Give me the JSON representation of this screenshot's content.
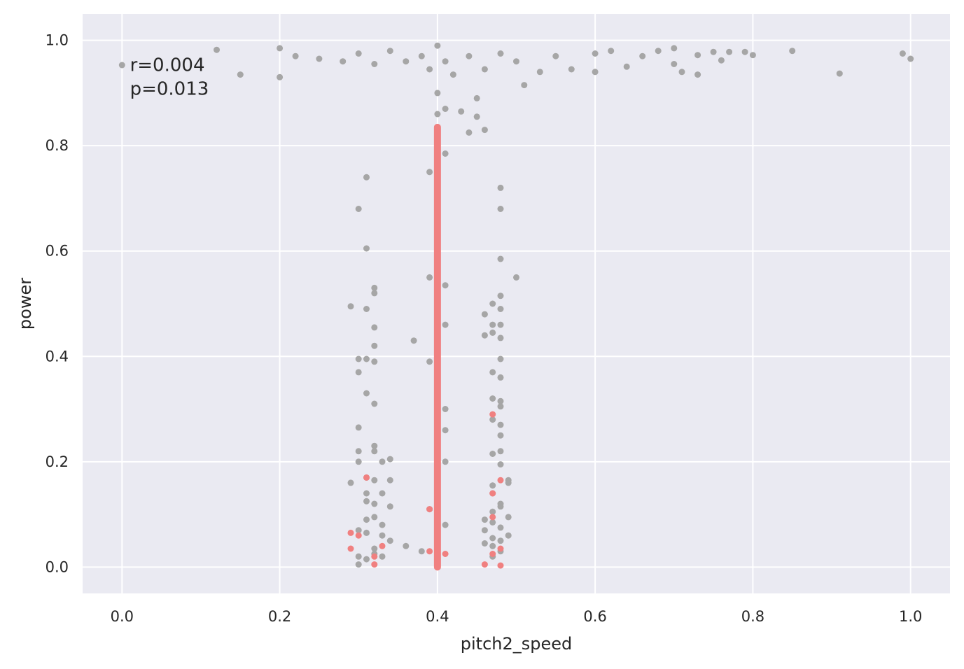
{
  "chart_data": {
    "type": "scatter",
    "title": "",
    "xlabel": "pitch2_speed",
    "ylabel": "power",
    "xlim": [
      -0.05,
      1.05
    ],
    "ylim": [
      -0.05,
      1.05
    ],
    "xticks": [
      0.0,
      0.2,
      0.4,
      0.6,
      0.8,
      1.0
    ],
    "xtick_labels": [
      "0.0",
      "0.2",
      "0.4",
      "0.6",
      "0.8",
      "1.0"
    ],
    "yticks": [
      0.0,
      0.2,
      0.4,
      0.6,
      0.8,
      1.0
    ],
    "ytick_labels": [
      "0.0",
      "0.2",
      "0.4",
      "0.6",
      "0.8",
      "1.0"
    ],
    "grid": true,
    "annotations": [
      "r=0.004",
      "p=0.013"
    ],
    "colors": {
      "background": "#eaeaf2",
      "grid": "#ffffff",
      "main_points": "#a6a6a6",
      "highlight_points": "#f08080",
      "text": "#262626"
    },
    "series": [
      {
        "color": "#a6a6a6",
        "points": [
          [
            0.0,
            0.953
          ],
          [
            0.12,
            0.982
          ],
          [
            0.15,
            0.935
          ],
          [
            0.2,
            0.985
          ],
          [
            0.2,
            0.93
          ],
          [
            0.22,
            0.97
          ],
          [
            0.25,
            0.965
          ],
          [
            0.28,
            0.96
          ],
          [
            0.3,
            0.975
          ],
          [
            0.32,
            0.955
          ],
          [
            0.34,
            0.98
          ],
          [
            0.36,
            0.96
          ],
          [
            0.38,
            0.97
          ],
          [
            0.39,
            0.945
          ],
          [
            0.4,
            0.99
          ],
          [
            0.41,
            0.96
          ],
          [
            0.42,
            0.935
          ],
          [
            0.44,
            0.97
          ],
          [
            0.46,
            0.945
          ],
          [
            0.48,
            0.975
          ],
          [
            0.5,
            0.96
          ],
          [
            0.51,
            0.915
          ],
          [
            0.53,
            0.94
          ],
          [
            0.55,
            0.97
          ],
          [
            0.57,
            0.945
          ],
          [
            0.6,
            0.975
          ],
          [
            0.6,
            0.94
          ],
          [
            0.62,
            0.98
          ],
          [
            0.64,
            0.95
          ],
          [
            0.66,
            0.97
          ],
          [
            0.68,
            0.98
          ],
          [
            0.7,
            0.985
          ],
          [
            0.7,
            0.955
          ],
          [
            0.71,
            0.94
          ],
          [
            0.73,
            0.935
          ],
          [
            0.73,
            0.972
          ],
          [
            0.75,
            0.978
          ],
          [
            0.76,
            0.962
          ],
          [
            0.77,
            0.978
          ],
          [
            0.79,
            0.978
          ],
          [
            0.8,
            0.972
          ],
          [
            0.85,
            0.98
          ],
          [
            0.91,
            0.937
          ],
          [
            0.99,
            0.975
          ],
          [
            1.0,
            0.965
          ],
          [
            0.4,
            0.9
          ],
          [
            0.4,
            0.86
          ],
          [
            0.41,
            0.87
          ],
          [
            0.43,
            0.865
          ],
          [
            0.45,
            0.89
          ],
          [
            0.45,
            0.855
          ],
          [
            0.44,
            0.825
          ],
          [
            0.46,
            0.83
          ],
          [
            0.41,
            0.785
          ],
          [
            0.39,
            0.75
          ],
          [
            0.4,
            0.77
          ],
          [
            0.4,
            0.67
          ],
          [
            0.4,
            0.63
          ],
          [
            0.39,
            0.55
          ],
          [
            0.41,
            0.535
          ],
          [
            0.41,
            0.46
          ],
          [
            0.37,
            0.43
          ],
          [
            0.39,
            0.39
          ],
          [
            0.41,
            0.3
          ],
          [
            0.41,
            0.26
          ],
          [
            0.41,
            0.2
          ],
          [
            0.36,
            0.04
          ],
          [
            0.38,
            0.03
          ],
          [
            0.41,
            0.08
          ],
          [
            0.39,
            0.11
          ],
          [
            0.31,
            0.74
          ],
          [
            0.3,
            0.68
          ],
          [
            0.31,
            0.605
          ],
          [
            0.32,
            0.53
          ],
          [
            0.32,
            0.52
          ],
          [
            0.29,
            0.495
          ],
          [
            0.31,
            0.49
          ],
          [
            0.32,
            0.455
          ],
          [
            0.32,
            0.42
          ],
          [
            0.3,
            0.395
          ],
          [
            0.31,
            0.395
          ],
          [
            0.32,
            0.39
          ],
          [
            0.3,
            0.37
          ],
          [
            0.31,
            0.33
          ],
          [
            0.32,
            0.31
          ],
          [
            0.3,
            0.265
          ],
          [
            0.32,
            0.23
          ],
          [
            0.3,
            0.22
          ],
          [
            0.32,
            0.22
          ],
          [
            0.33,
            0.2
          ],
          [
            0.34,
            0.205
          ],
          [
            0.3,
            0.2
          ],
          [
            0.31,
            0.17
          ],
          [
            0.32,
            0.165
          ],
          [
            0.34,
            0.165
          ],
          [
            0.29,
            0.16
          ],
          [
            0.31,
            0.14
          ],
          [
            0.33,
            0.14
          ],
          [
            0.31,
            0.125
          ],
          [
            0.32,
            0.12
          ],
          [
            0.34,
            0.115
          ],
          [
            0.31,
            0.09
          ],
          [
            0.32,
            0.095
          ],
          [
            0.33,
            0.08
          ],
          [
            0.3,
            0.07
          ],
          [
            0.31,
            0.065
          ],
          [
            0.33,
            0.06
          ],
          [
            0.34,
            0.05
          ],
          [
            0.32,
            0.035
          ],
          [
            0.3,
            0.02
          ],
          [
            0.32,
            0.025
          ],
          [
            0.33,
            0.02
          ],
          [
            0.31,
            0.015
          ],
          [
            0.3,
            0.005
          ],
          [
            0.48,
            0.72
          ],
          [
            0.48,
            0.68
          ],
          [
            0.48,
            0.585
          ],
          [
            0.5,
            0.55
          ],
          [
            0.48,
            0.515
          ],
          [
            0.47,
            0.5
          ],
          [
            0.48,
            0.49
          ],
          [
            0.46,
            0.48
          ],
          [
            0.47,
            0.46
          ],
          [
            0.48,
            0.46
          ],
          [
            0.47,
            0.445
          ],
          [
            0.46,
            0.44
          ],
          [
            0.48,
            0.435
          ],
          [
            0.48,
            0.395
          ],
          [
            0.47,
            0.37
          ],
          [
            0.48,
            0.36
          ],
          [
            0.47,
            0.32
          ],
          [
            0.48,
            0.315
          ],
          [
            0.48,
            0.305
          ],
          [
            0.47,
            0.28
          ],
          [
            0.48,
            0.27
          ],
          [
            0.48,
            0.25
          ],
          [
            0.48,
            0.22
          ],
          [
            0.47,
            0.215
          ],
          [
            0.48,
            0.195
          ],
          [
            0.49,
            0.165
          ],
          [
            0.49,
            0.16
          ],
          [
            0.47,
            0.155
          ],
          [
            0.47,
            0.14
          ],
          [
            0.48,
            0.12
          ],
          [
            0.48,
            0.115
          ],
          [
            0.47,
            0.105
          ],
          [
            0.49,
            0.095
          ],
          [
            0.46,
            0.09
          ],
          [
            0.47,
            0.085
          ],
          [
            0.48,
            0.075
          ],
          [
            0.46,
            0.07
          ],
          [
            0.49,
            0.06
          ],
          [
            0.47,
            0.055
          ],
          [
            0.48,
            0.05
          ],
          [
            0.46,
            0.045
          ],
          [
            0.47,
            0.04
          ],
          [
            0.48,
            0.03
          ],
          [
            0.47,
            0.02
          ]
        ]
      },
      {
        "color": "#f08080",
        "points": [
          [
            0.4,
            0.835
          ],
          [
            0.4,
            0.8
          ],
          [
            0.4,
            0.75
          ],
          [
            0.4,
            0.7
          ],
          [
            0.4,
            0.655
          ],
          [
            0.4,
            0.6
          ],
          [
            0.4,
            0.57
          ],
          [
            0.4,
            0.5
          ],
          [
            0.4,
            0.45
          ],
          [
            0.4,
            0.4
          ],
          [
            0.4,
            0.35
          ],
          [
            0.4,
            0.3
          ],
          [
            0.4,
            0.25
          ],
          [
            0.4,
            0.2
          ],
          [
            0.4,
            0.15
          ],
          [
            0.4,
            0.1
          ],
          [
            0.4,
            0.05
          ],
          [
            0.4,
            0.0
          ],
          [
            0.39,
            0.11
          ],
          [
            0.39,
            0.03
          ],
          [
            0.41,
            0.025
          ],
          [
            0.29,
            0.065
          ],
          [
            0.3,
            0.06
          ],
          [
            0.29,
            0.035
          ],
          [
            0.31,
            0.17
          ],
          [
            0.32,
            0.02
          ],
          [
            0.32,
            0.005
          ],
          [
            0.33,
            0.04
          ],
          [
            0.47,
            0.29
          ],
          [
            0.48,
            0.165
          ],
          [
            0.47,
            0.14
          ],
          [
            0.47,
            0.095
          ],
          [
            0.47,
            0.025
          ],
          [
            0.48,
            0.035
          ],
          [
            0.46,
            0.005
          ],
          [
            0.48,
            0.003
          ]
        ]
      }
    ]
  }
}
